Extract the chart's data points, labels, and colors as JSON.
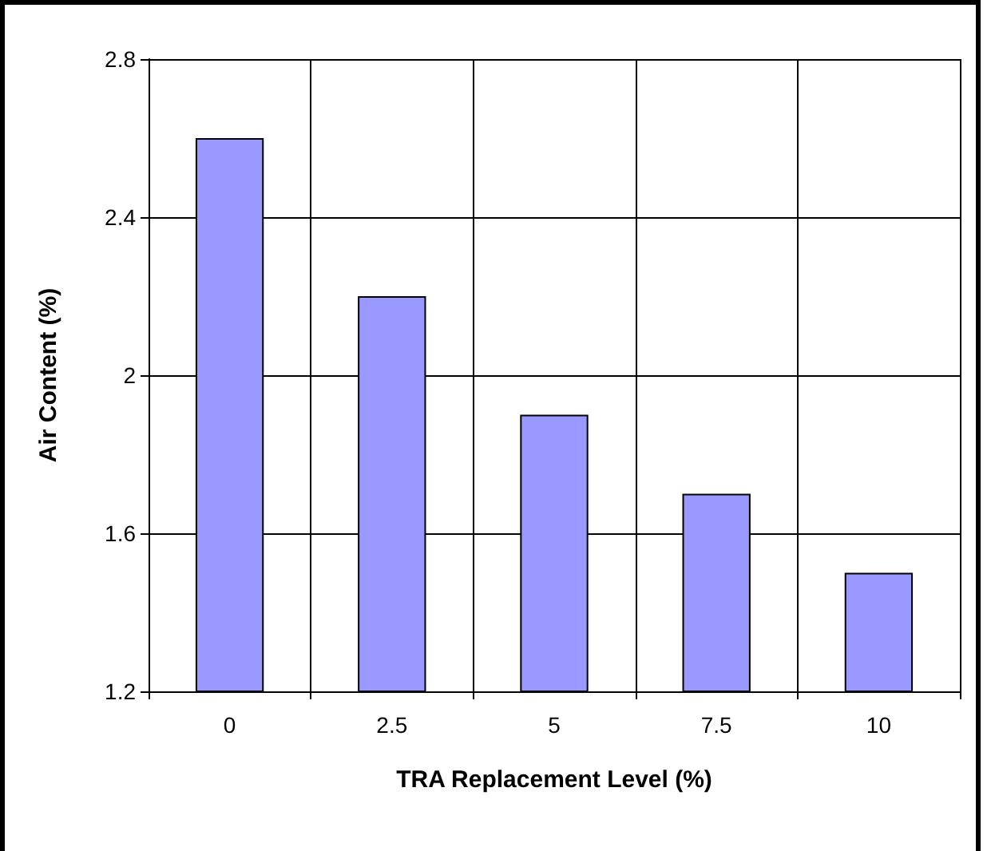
{
  "chart_data": {
    "type": "bar",
    "xlabel": "TRA Replacement Level (%)",
    "ylabel": "Air Content (%)",
    "categories": [
      "0",
      "2.5",
      "5",
      "7.5",
      "10"
    ],
    "values": [
      2.6,
      2.2,
      1.9,
      1.7,
      1.5
    ],
    "color": "#9999ff",
    "ylim": [
      1.2,
      2.8
    ],
    "yticks": [
      1.2,
      1.6,
      2,
      2.4,
      2.8
    ],
    "grid": true
  }
}
